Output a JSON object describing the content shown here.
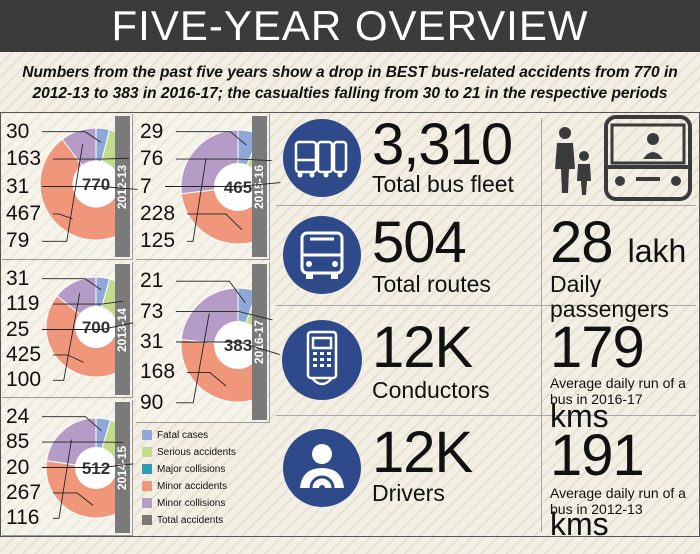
{
  "header": {
    "title": "FIVE-YEAR OVERVIEW",
    "subtitle_line1": "Numbers from the past five years show a drop in BEST bus-related accidents from 770 in",
    "subtitle_line2": "2012-13 to 383 in 2016-17; the casualties falling from 30 to 21 in the respective periods"
  },
  "colors": {
    "fatal": "#8fa8d8",
    "serious": "#c2dc8c",
    "major": "#2f9cb0",
    "minor_accidents": "#f0967a",
    "minor_collisions": "#b49cc6",
    "total": "#7a7a7a"
  },
  "chart_data": {
    "type": "pie",
    "categories": [
      "Fatal cases",
      "Serious accidents",
      "Major collisions",
      "Minor accidents",
      "Minor collisions"
    ],
    "legend": [
      "Fatal cases",
      "Serious accidents",
      "Major collisions",
      "Minor accidents",
      "Minor collisions",
      "Total accidents"
    ],
    "years": [
      {
        "year": "2012-13",
        "total": "770",
        "values": [
          30,
          163,
          31,
          467,
          79
        ]
      },
      {
        "year": "2013-14",
        "total": "700",
        "values": [
          31,
          119,
          25,
          425,
          100
        ]
      },
      {
        "year": "2014-15",
        "total": "512",
        "values": [
          24,
          85,
          20,
          267,
          116
        ]
      },
      {
        "year": "2015-16",
        "total": "465",
        "values": [
          29,
          76,
          7,
          228,
          125
        ]
      },
      {
        "year": "2016-17",
        "total": "383",
        "values": [
          21,
          73,
          31,
          168,
          90
        ]
      }
    ]
  },
  "stats": {
    "fleet": {
      "value": "3,310",
      "label": "Total bus fleet"
    },
    "routes": {
      "value": "504",
      "label": "Total routes"
    },
    "conductors": {
      "value": "12K",
      "label": "Conductors"
    },
    "drivers": {
      "value": "12K",
      "label": "Drivers"
    },
    "passengers": {
      "value": "28",
      "unit": "lakh",
      "label": "Daily passengers"
    },
    "run_2016": {
      "value": "179",
      "unit": "kms",
      "label_line1": "Average daily run of a",
      "label_line2": "bus in 2016-17"
    },
    "run_2012": {
      "value": "191",
      "unit": "kms",
      "label_line1": "Average daily run of a",
      "label_line2": "bus in 2012-13"
    }
  }
}
